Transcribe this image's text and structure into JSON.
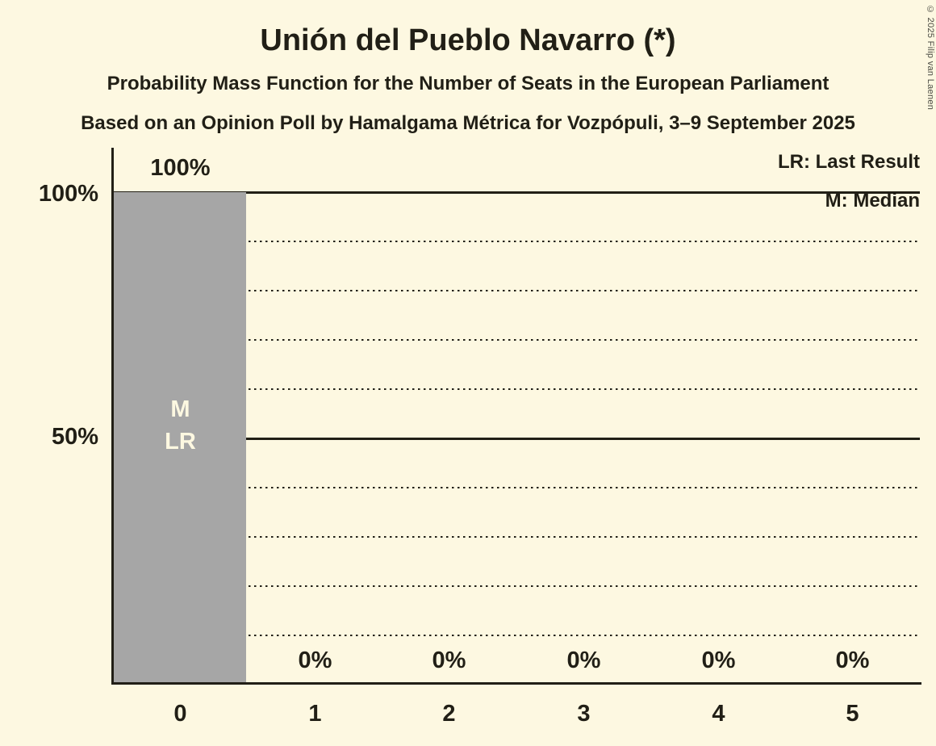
{
  "title": "Unión del Pueblo Navarro (*)",
  "subtitle1": "Probability Mass Function for the Number of Seats in the European Parliament",
  "subtitle2": "Based on an Opinion Poll by Hamalgama Métrica for Vozpópuli, 3–9 September 2025",
  "copyright": "© 2025 Filip van Laenen",
  "legend": {
    "lr": "LR: Last Result",
    "m": "M: Median"
  },
  "y_axis": {
    "label_100": "100%",
    "label_50": "50%"
  },
  "colors": {
    "background": "#fdf8e1",
    "bar": "#a6a6a6",
    "text": "#211f16",
    "bar_text": "#fdf8e1"
  },
  "chart_data": {
    "type": "bar",
    "title": "Unión del Pueblo Navarro (*)",
    "categories": [
      "0",
      "1",
      "2",
      "3",
      "4",
      "5"
    ],
    "values": [
      100,
      0,
      0,
      0,
      0,
      0
    ],
    "bar_labels": [
      "100%",
      "0%",
      "0%",
      "0%",
      "0%",
      "0%"
    ],
    "annotations": [
      {
        "category": "0",
        "lines": [
          "M",
          "LR"
        ]
      }
    ],
    "xlabel": "",
    "ylabel": "",
    "ylim": [
      0,
      100
    ],
    "gridlines": {
      "solid": [
        50,
        100
      ],
      "dotted": [
        10,
        20,
        30,
        40,
        60,
        70,
        80,
        90
      ]
    },
    "legend_position": "top-right",
    "grid": true
  }
}
